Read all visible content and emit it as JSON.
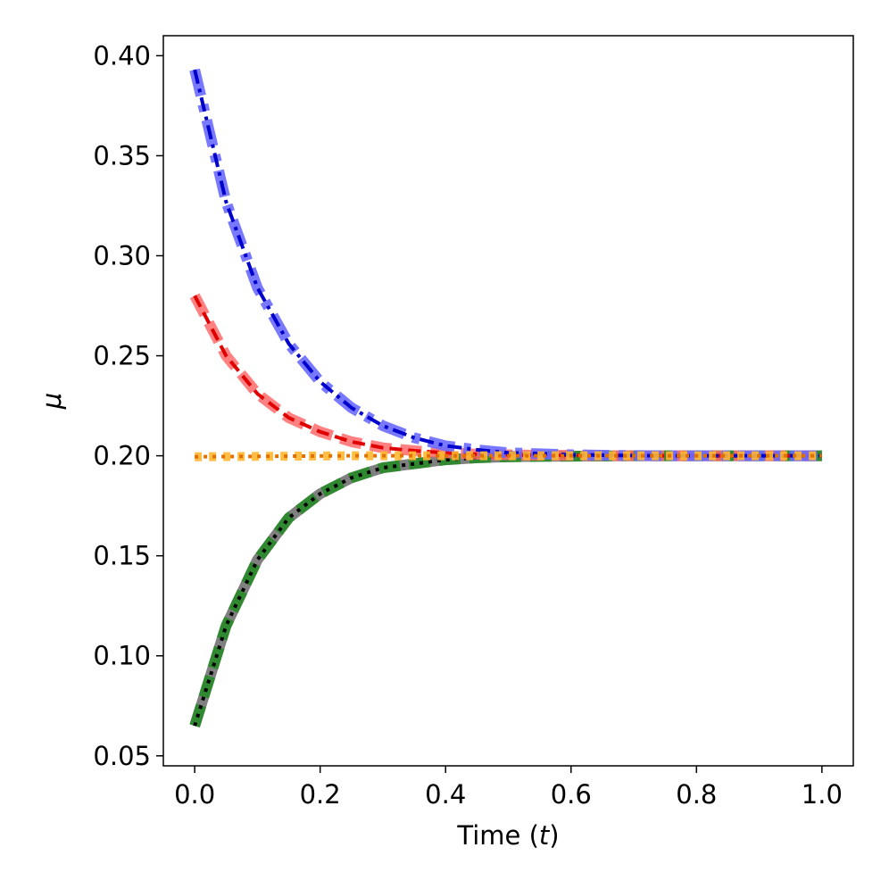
{
  "chart_data": {
    "type": "line",
    "title": "",
    "xlabel": "Time (",
    "xlabel_var": "t",
    "xlabel_close": ")",
    "ylabel": "μ",
    "xlim": [
      -0.05,
      1.05
    ],
    "ylim": [
      0.045,
      0.41
    ],
    "xticks": [
      0.0,
      0.2,
      0.4,
      0.6,
      0.8,
      1.0
    ],
    "xtick_labels": [
      "0.0",
      "0.2",
      "0.4",
      "0.6",
      "0.8",
      "1.0"
    ],
    "yticks": [
      0.05,
      0.1,
      0.15,
      0.2,
      0.25,
      0.3,
      0.35,
      0.4
    ],
    "ytick_labels": [
      "0.05",
      "0.10",
      "0.15",
      "0.20",
      "0.25",
      "0.30",
      "0.35",
      "0.40"
    ],
    "grid": false,
    "legend": "none",
    "x": [
      0.0,
      0.05,
      0.1,
      0.15,
      0.2,
      0.25,
      0.3,
      0.35,
      0.4,
      0.45,
      0.5,
      0.55,
      0.6,
      0.65,
      0.7,
      0.75,
      0.8,
      0.85,
      0.9,
      0.95,
      1.0
    ],
    "series": [
      {
        "color": "#808080",
        "style": "solid-wide",
        "values": [
          0.065,
          0.115,
          0.148,
          0.169,
          0.181,
          0.189,
          0.194,
          0.196,
          0.198,
          0.199,
          0.1995,
          0.1997,
          0.1998,
          0.1999,
          0.2,
          0.2,
          0.2,
          0.2,
          0.2,
          0.2,
          0.2
        ]
      },
      {
        "color": "#228b22",
        "style": "dashed-wide",
        "values": [
          0.065,
          0.115,
          0.148,
          0.169,
          0.181,
          0.189,
          0.194,
          0.196,
          0.198,
          0.199,
          0.1995,
          0.1997,
          0.1998,
          0.1999,
          0.2,
          0.2,
          0.2,
          0.2,
          0.2,
          0.2,
          0.2
        ]
      },
      {
        "color": "#000000",
        "style": "dotted",
        "values": [
          0.065,
          0.115,
          0.148,
          0.169,
          0.181,
          0.189,
          0.194,
          0.196,
          0.198,
          0.199,
          0.1995,
          0.1997,
          0.1998,
          0.1999,
          0.2,
          0.2,
          0.2,
          0.2,
          0.2,
          0.2,
          0.2
        ]
      },
      {
        "color": "#ff6a6a",
        "style": "dashed-wide",
        "values": [
          0.28,
          0.25,
          0.231,
          0.219,
          0.212,
          0.207,
          0.204,
          0.2025,
          0.2015,
          0.2008,
          0.2005,
          0.2003,
          0.2002,
          0.2001,
          0.2,
          0.2,
          0.2,
          0.2,
          0.2,
          0.2,
          0.2
        ]
      },
      {
        "color": "#e00000",
        "style": "dashed",
        "values": [
          0.28,
          0.25,
          0.231,
          0.219,
          0.212,
          0.207,
          0.204,
          0.2025,
          0.2015,
          0.2008,
          0.2005,
          0.2003,
          0.2002,
          0.2001,
          0.2,
          0.2,
          0.2,
          0.2,
          0.2,
          0.2,
          0.2
        ]
      },
      {
        "color": "#6a6aff",
        "style": "dashdot-wide",
        "values": [
          0.393,
          0.327,
          0.284,
          0.256,
          0.237,
          0.224,
          0.215,
          0.209,
          0.205,
          0.203,
          0.2015,
          0.201,
          0.2005,
          0.2003,
          0.2001,
          0.2,
          0.2,
          0.2,
          0.2,
          0.2,
          0.2
        ]
      },
      {
        "color": "#0000cc",
        "style": "dashdot",
        "values": [
          0.393,
          0.327,
          0.284,
          0.256,
          0.237,
          0.224,
          0.215,
          0.209,
          0.205,
          0.203,
          0.2015,
          0.201,
          0.2005,
          0.2003,
          0.2001,
          0.2,
          0.2,
          0.2,
          0.2,
          0.2,
          0.2
        ]
      },
      {
        "color": "#ffb732",
        "style": "dotted-wide",
        "values": [
          0.1995,
          0.1996,
          0.1997,
          0.1998,
          0.1999,
          0.2,
          0.2,
          0.2,
          0.2,
          0.2,
          0.2,
          0.2,
          0.2,
          0.2,
          0.2,
          0.2,
          0.2,
          0.2,
          0.2,
          0.2,
          0.2
        ]
      },
      {
        "color": "#e07000",
        "style": "dotted",
        "values": [
          0.1995,
          0.1996,
          0.1997,
          0.1998,
          0.1999,
          0.2,
          0.2,
          0.2,
          0.2,
          0.2,
          0.2,
          0.2,
          0.2,
          0.2,
          0.2,
          0.2,
          0.2,
          0.2,
          0.2,
          0.2,
          0.2
        ]
      }
    ]
  }
}
